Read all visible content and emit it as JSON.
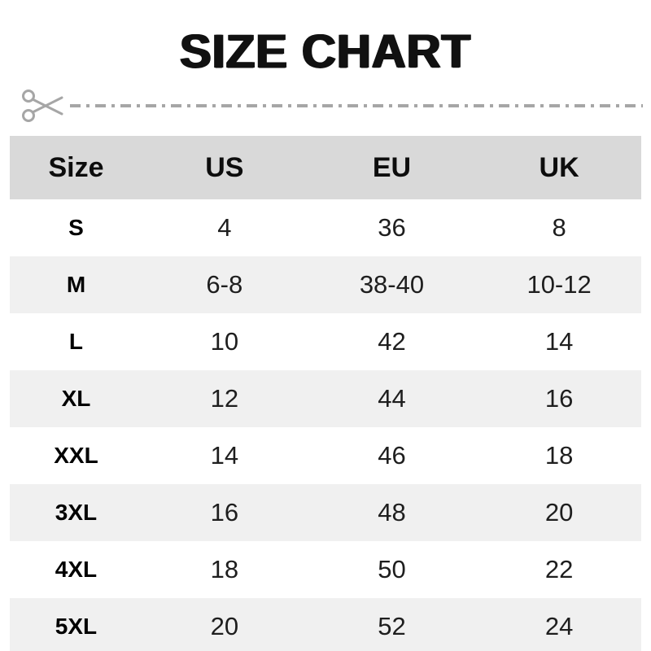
{
  "page": {
    "title": "SIZE CHART"
  },
  "divider": {
    "style": "dash-dot",
    "color": "#a6a6a6",
    "icon": "scissors-icon"
  },
  "chart_data": {
    "type": "table",
    "title": "SIZE CHART",
    "columns": [
      "Size",
      "US",
      "EU",
      "UK"
    ],
    "rows": [
      [
        "S",
        "4",
        "36",
        "8"
      ],
      [
        "M",
        "6-8",
        "38-40",
        "10-12"
      ],
      [
        "L",
        "10",
        "42",
        "14"
      ],
      [
        "XL",
        "12",
        "44",
        "16"
      ],
      [
        "XXL",
        "14",
        "46",
        "18"
      ],
      [
        "3XL",
        "16",
        "48",
        "20"
      ],
      [
        "4XL",
        "18",
        "50",
        "22"
      ],
      [
        "5XL",
        "20",
        "52",
        "24"
      ]
    ]
  },
  "colors": {
    "header_bg": "#d9d9d9",
    "alt_row_bg": "#f0f0f0",
    "row_bg": "#ffffff",
    "title_text": "#111111",
    "cell_text": "#1e1e1e",
    "divider": "#a6a6a6"
  }
}
